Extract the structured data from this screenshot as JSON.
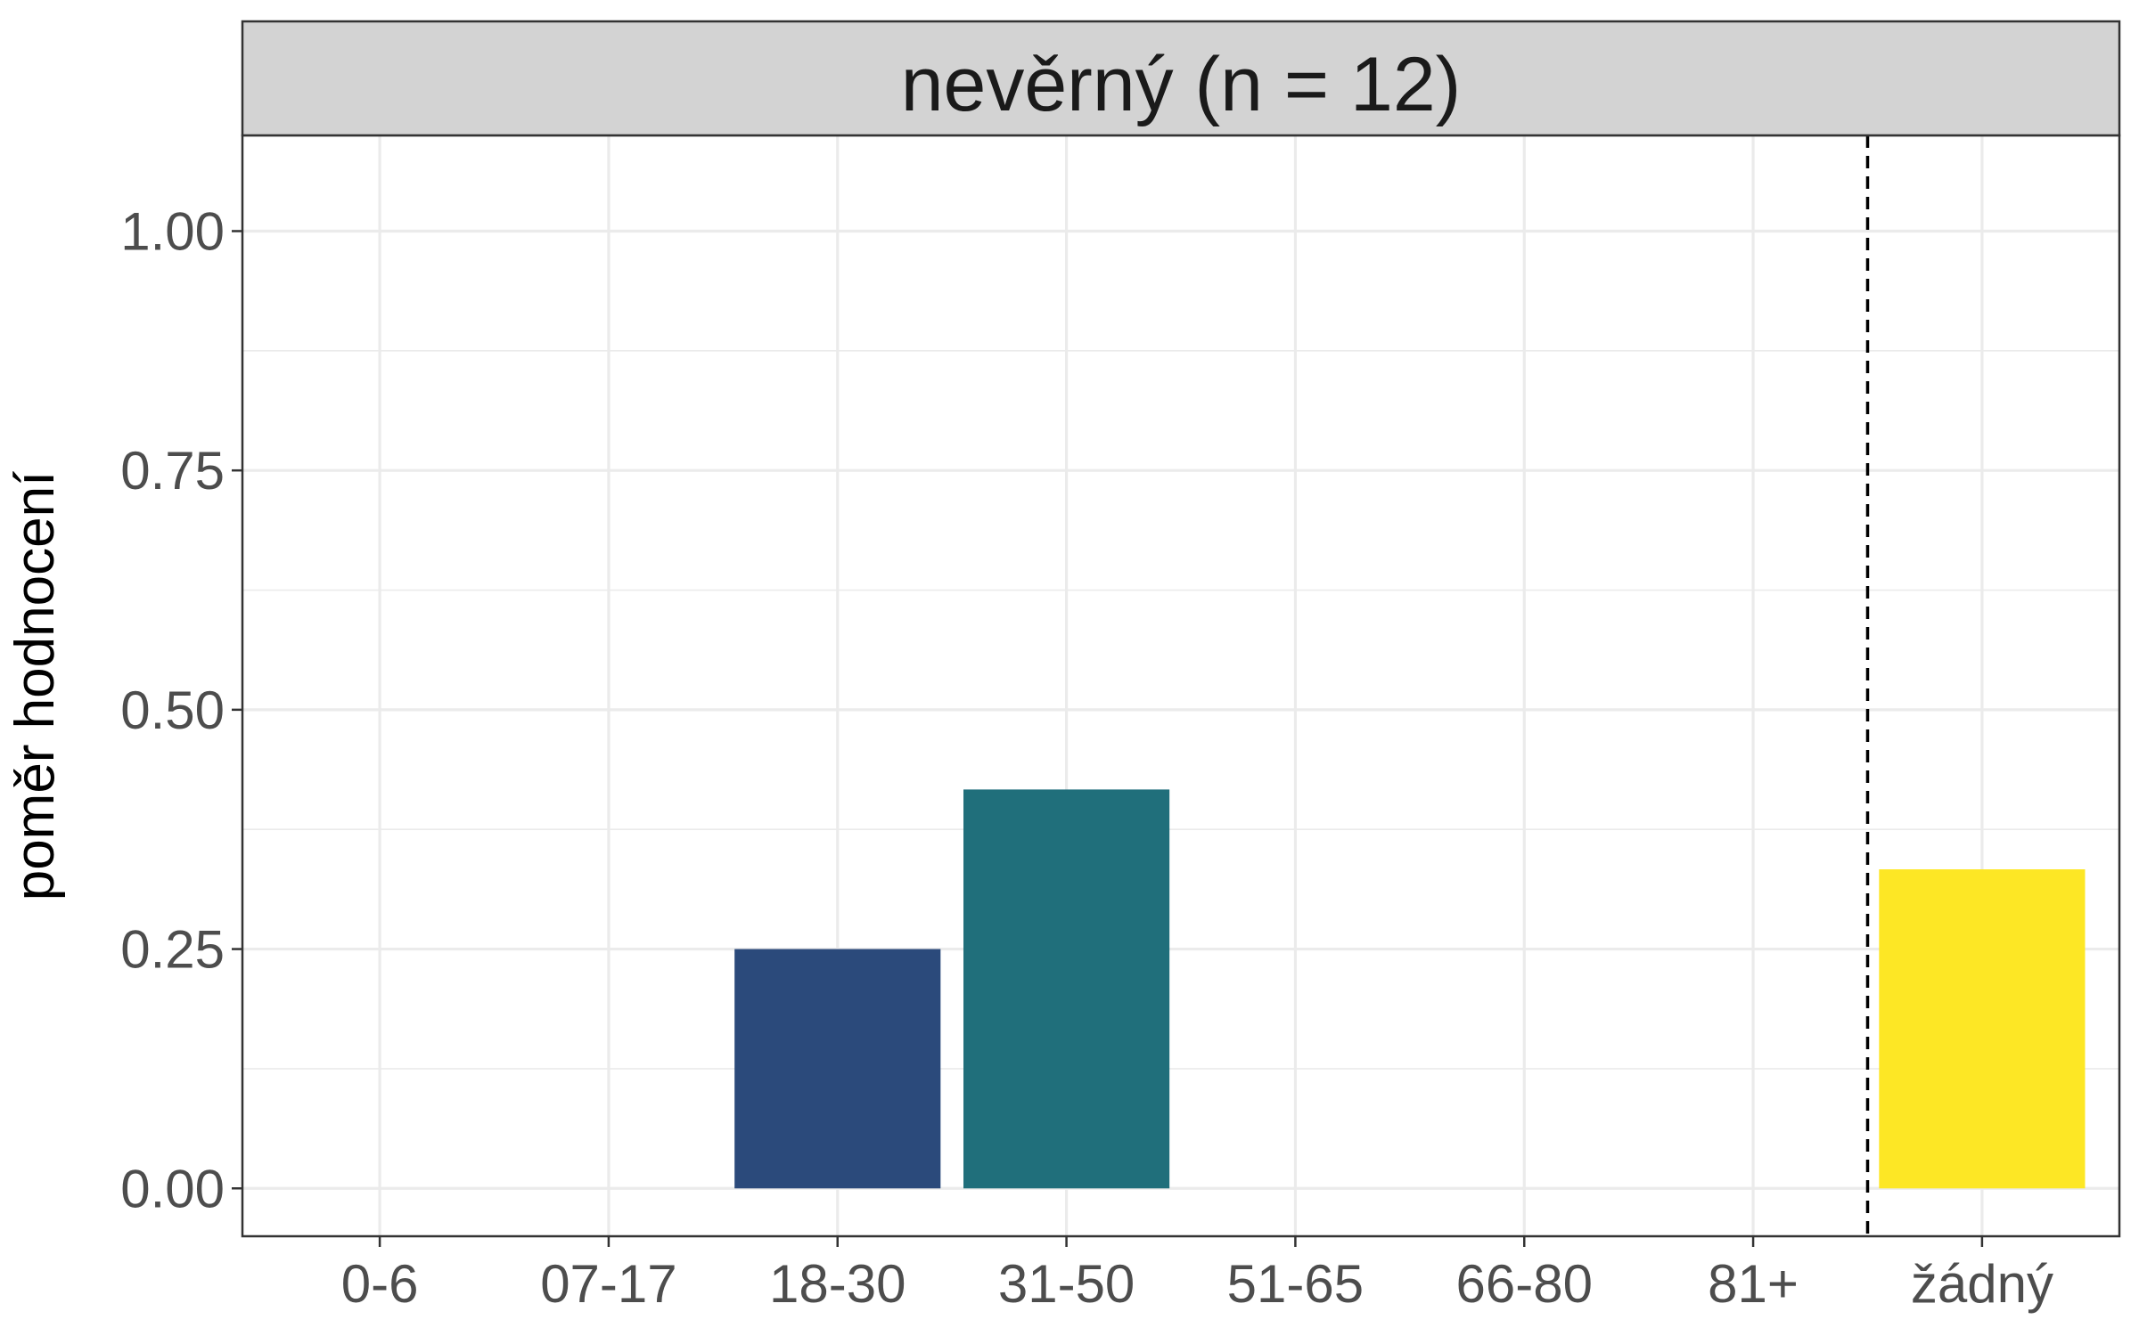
{
  "chart_data": {
    "type": "bar",
    "facet_title": "nevěrný (n = 12)",
    "categories": [
      "0-6",
      "07-17",
      "18-30",
      "31-50",
      "51-65",
      "66-80",
      "81+",
      "žádný"
    ],
    "values": [
      0,
      0,
      0.25,
      0.4167,
      0,
      0,
      0,
      0.3333
    ],
    "colors": [
      "#440154",
      "#46337e",
      "#2b4a7b",
      "#206f7b",
      "#21918c",
      "#3bbb75",
      "#86d549",
      "#fde725"
    ],
    "ylabel": "poměr hodnocení",
    "xlabel": "",
    "ylim": [
      -0.05,
      1.1
    ],
    "y_ticks": [
      0,
      0.25,
      0.5,
      0.75,
      1
    ],
    "y_tick_labels": [
      "0.00",
      "0.25",
      "0.50",
      "0.75",
      "1.00"
    ],
    "reference_line": {
      "type": "vertical-dashed",
      "between": [
        "81+",
        "žádný"
      ]
    },
    "grid": true,
    "legend": "none"
  }
}
